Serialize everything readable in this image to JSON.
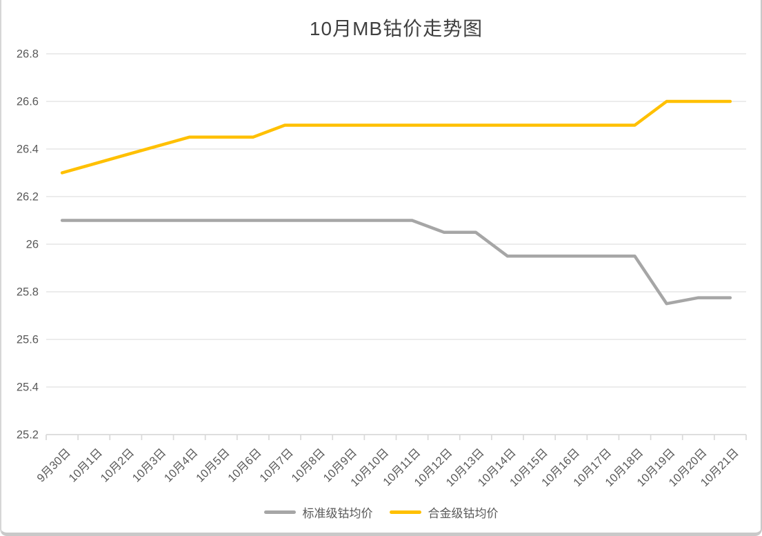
{
  "chart_data": {
    "type": "line",
    "title": "10月MB钴价走势图",
    "xlabel": "",
    "ylabel": "",
    "categories": [
      "9月30日",
      "10月1日",
      "10月2日",
      "10月3日",
      "10月4日",
      "10月5日",
      "10月6日",
      "10月7日",
      "10月8日",
      "10月9日",
      "10月10日",
      "10月11日",
      "10月12日",
      "10月13日",
      "10月14日",
      "10月15日",
      "10月16日",
      "10月17日",
      "10月18日",
      "10月19日",
      "10月20日",
      "10月21日"
    ],
    "series": [
      {
        "name": "标准级钴均价",
        "color": "#A6A6A6",
        "values": [
          26.1,
          26.1,
          26.1,
          26.1,
          26.1,
          26.1,
          26.1,
          26.1,
          26.1,
          26.1,
          26.1,
          26.1,
          26.05,
          26.05,
          25.95,
          25.95,
          25.95,
          25.95,
          25.95,
          25.75,
          25.775,
          25.775
        ]
      },
      {
        "name": "合金级钴均价",
        "color": "#FFC000",
        "values": [
          26.3,
          26.3375,
          26.375,
          26.4125,
          26.45,
          26.45,
          26.45,
          26.5,
          26.5,
          26.5,
          26.5,
          26.5,
          26.5,
          26.5,
          26.5,
          26.5,
          26.5,
          26.5,
          26.5,
          26.6,
          26.6,
          26.6
        ]
      }
    ],
    "ylim": [
      25.2,
      26.8
    ],
    "ytick_interval": 0.2,
    "ytick_labels": [
      "25.2",
      "25.4",
      "25.6",
      "25.8",
      "26",
      "26.2",
      "26.4",
      "26.6",
      "26.8"
    ],
    "grid": "horizontal",
    "legend_position": "bottom",
    "axis_color": "#D9D9D9",
    "label_color": "#595959",
    "title_color": "#3F3F3F"
  }
}
